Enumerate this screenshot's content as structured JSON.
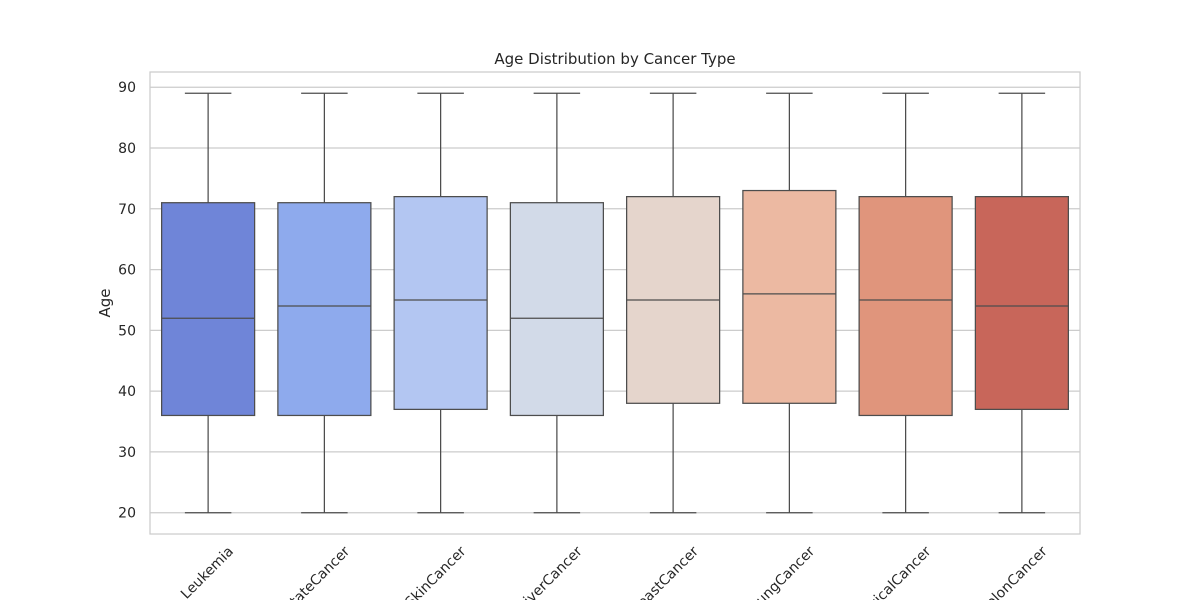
{
  "chart_data": {
    "type": "boxplot",
    "title": "Age Distribution by Cancer Type",
    "xlabel": "",
    "ylabel": "Age",
    "ylim": [
      16.5,
      92.5
    ],
    "yticks": [
      20,
      30,
      40,
      50,
      60,
      70,
      80,
      90
    ],
    "grid": "horizontal",
    "legend": "none",
    "categories": [
      "Leukemia",
      "ProstateCancer",
      "SkinCancer",
      "LiverCancer",
      "BreastCancer",
      "LungCancer",
      "CervicalCancer",
      "ColonCancer"
    ],
    "boxes": [
      {
        "category": "Leukemia",
        "whisker_low": 20,
        "q1": 36,
        "median": 52,
        "q3": 71,
        "whisker_high": 89,
        "color": "#6f85d8"
      },
      {
        "category": "ProstateCancer",
        "whisker_low": 20,
        "q1": 36,
        "median": 54,
        "q3": 71,
        "whisker_high": 89,
        "color": "#8eaaed"
      },
      {
        "category": "SkinCancer",
        "whisker_low": 20,
        "q1": 37,
        "median": 55,
        "q3": 72,
        "whisker_high": 89,
        "color": "#b3c6f2"
      },
      {
        "category": "LiverCancer",
        "whisker_low": 20,
        "q1": 36,
        "median": 52,
        "q3": 71,
        "whisker_high": 89,
        "color": "#d2dae8"
      },
      {
        "category": "BreastCancer",
        "whisker_low": 20,
        "q1": 38,
        "median": 55,
        "q3": 72,
        "whisker_high": 89,
        "color": "#e5d5cc"
      },
      {
        "category": "LungCancer",
        "whisker_low": 20,
        "q1": 38,
        "median": 56,
        "q3": 73,
        "whisker_high": 89,
        "color": "#ecb9a2"
      },
      {
        "category": "CervicalCancer",
        "whisker_low": 20,
        "q1": 36,
        "median": 55,
        "q3": 72,
        "whisker_high": 89,
        "color": "#e0957c"
      },
      {
        "category": "ColonCancer",
        "whisker_low": 20,
        "q1": 37,
        "median": 54,
        "q3": 72,
        "whisker_high": 89,
        "color": "#c8665a"
      }
    ],
    "colors": {
      "grid": "#cccccc",
      "frame": "#cccccc",
      "line": "#4d4d4d",
      "text": "#262626"
    }
  }
}
